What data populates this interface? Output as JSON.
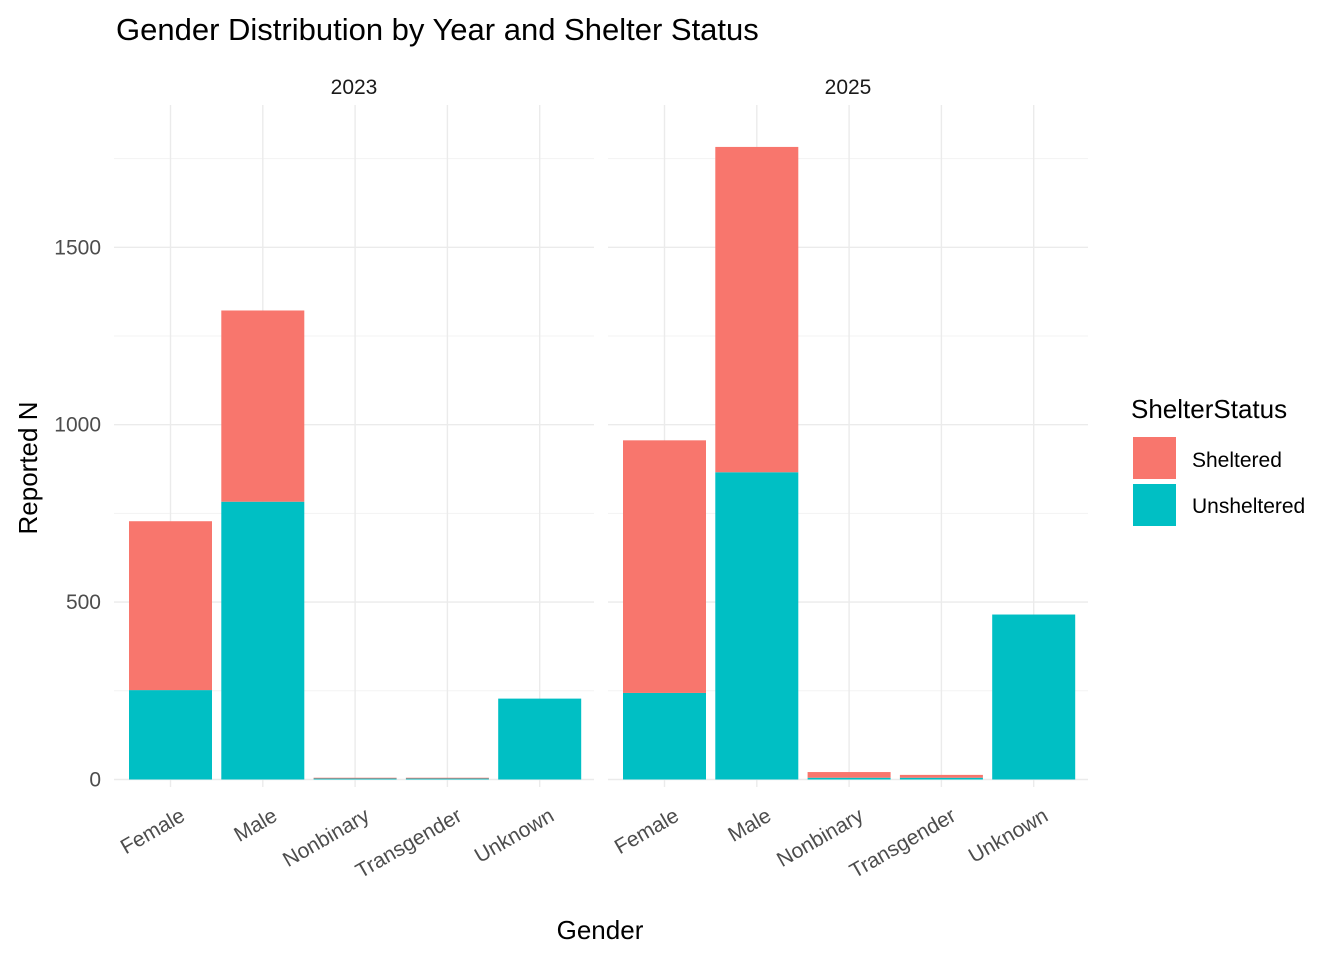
{
  "chart_data": {
    "type": "bar",
    "stacked": true,
    "title": "Gender Distribution by Year and Shelter Status",
    "xlabel": "Gender",
    "ylabel": "Reported N",
    "ylim": [
      0,
      1800
    ],
    "yticks": [
      0,
      500,
      1000,
      1500
    ],
    "grid": true,
    "legend": {
      "title": "ShelterStatus",
      "position": "right",
      "entries": [
        {
          "name": "Sheltered",
          "color": "#F8766D"
        },
        {
          "name": "Unsheltered",
          "color": "#00BFC4"
        }
      ]
    },
    "categories": [
      "Female",
      "Male",
      "Nonbinary",
      "Transgender",
      "Unknown"
    ],
    "panels": [
      {
        "label": "2023",
        "series": [
          {
            "name": "Unsheltered",
            "values": [
              252,
              783,
              3,
              3,
              228
            ]
          },
          {
            "name": "Sheltered",
            "values": [
              476,
              539,
              2,
              2,
              0
            ]
          }
        ]
      },
      {
        "label": "2025",
        "series": [
          {
            "name": "Unsheltered",
            "values": [
              244,
              866,
              5,
              5,
              465
            ]
          },
          {
            "name": "Sheltered",
            "values": [
              712,
              917,
              16,
              8,
              0
            ]
          }
        ]
      }
    ]
  }
}
